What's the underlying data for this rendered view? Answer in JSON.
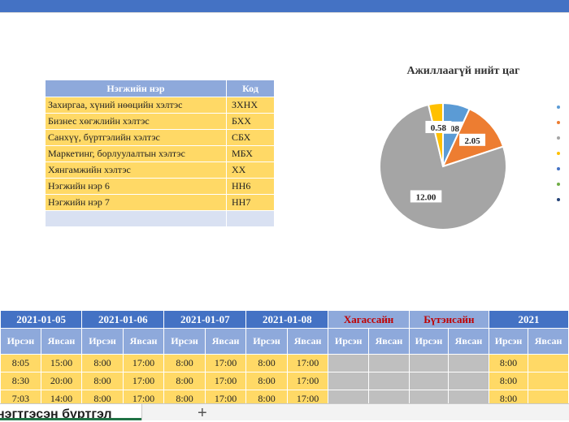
{
  "unit_table": {
    "headers": [
      "Нэгжийн нэр",
      "Код"
    ],
    "rows": [
      {
        "name": "Захиргаа, хүний нөөцийн хэлтэс",
        "code": "ЗХНХ"
      },
      {
        "name": "Бизнес хөгжлийн хэлтэс",
        "code": "БХХ"
      },
      {
        "name": "Санхүү, бүртгэлийн хэлтэс",
        "code": "СБХ"
      },
      {
        "name": "Маркетинг, борлуулалтын хэлтэс",
        "code": "МБХ"
      },
      {
        "name": "Хянгамжийн хэлтэс",
        "code": "ХХ"
      },
      {
        "name": "Нэгжийн нэр 6",
        "code": "НН6"
      },
      {
        "name": "Нэгжийн нэр 7",
        "code": "НН7"
      }
    ]
  },
  "chart_data": {
    "type": "pie",
    "title": "Ажиллаагүй нийт цаг",
    "slices": [
      {
        "value": 1.08,
        "label": "1.08",
        "color": "#5b9bd5"
      },
      {
        "value": 2.05,
        "label": "2.05",
        "color": "#ed7d31"
      },
      {
        "value": 12.0,
        "label": "12.00",
        "color": "#a5a5a5"
      },
      {
        "value": 0.58,
        "label": "0.58",
        "color": "#ffc000"
      }
    ],
    "legend_placement": "right",
    "legend_colors": [
      "#5b9bd5",
      "#ed7d31",
      "#a5a5a5",
      "#ffc000",
      "#4472c4",
      "#70ad47",
      "#264478"
    ]
  },
  "schedule": {
    "dates": [
      "2021-01-05",
      "2021-01-06",
      "2021-01-07",
      "2021-01-08",
      "Хагассайн",
      "Бүтэнсайн",
      "2021"
    ],
    "in_label": "Ирсэн",
    "out_label": "Явсан",
    "rows": [
      [
        "8:05",
        "15:00",
        "8:00",
        "17:00",
        "8:00",
        "17:00",
        "8:00",
        "17:00",
        "8:00"
      ],
      [
        "8:30",
        "20:00",
        "8:00",
        "17:00",
        "8:00",
        "17:00",
        "8:00",
        "17:00",
        "8:00"
      ],
      [
        "7:03",
        "14:00",
        "8:00",
        "17:00",
        "8:00",
        "17:00",
        "8:00",
        "17:00",
        "8:00"
      ]
    ]
  },
  "sheet_tabs": {
    "active": "нэгтгэсэн бүртгэл",
    "add_icon": "+"
  }
}
